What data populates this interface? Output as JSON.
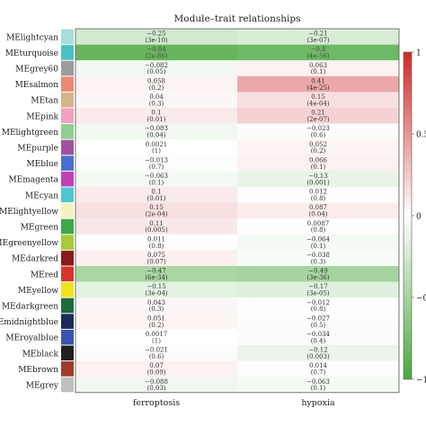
{
  "chart_data": {
    "type": "heatmap",
    "title": "Module–trait relationships",
    "columns": [
      "ferroptosis",
      "hypoxia"
    ],
    "rows": [
      {
        "module": "MElightcyan",
        "swatch": "#a6dcdc",
        "cells": [
          {
            "r": -0.25,
            "p": "(3e-10)"
          },
          {
            "r": -0.21,
            "p": "(3e-07)"
          }
        ]
      },
      {
        "module": "MEturquoise",
        "swatch": "#48c2c2",
        "cells": [
          {
            "r": -0.84,
            "p": "(2e-86)"
          },
          {
            "r": -0.8,
            "p": "(4e-56)"
          }
        ]
      },
      {
        "module": "MEgrey60",
        "swatch": "#9b9b9b",
        "cells": [
          {
            "r": -0.082,
            "p": "(0.05)"
          },
          {
            "r": 0.063,
            "p": "(0.1)"
          }
        ]
      },
      {
        "module": "MEsalmon",
        "swatch": "#e88a74",
        "cells": [
          {
            "r": 0.058,
            "p": "(0.2)"
          },
          {
            "r": 0.41,
            "p": "(4e-25)"
          }
        ]
      },
      {
        "module": "MEtan",
        "swatch": "#d4b48a",
        "cells": [
          {
            "r": 0.04,
            "p": "(0.3)"
          },
          {
            "r": 0.15,
            "p": "(4e-04)"
          }
        ]
      },
      {
        "module": "MEpink",
        "swatch": "#f2a0c0",
        "cells": [
          {
            "r": 0.1,
            "p": "(0.01)"
          },
          {
            "r": 0.21,
            "p": "(2e-07)"
          }
        ]
      },
      {
        "module": "MElightgreen",
        "swatch": "#8fd08f",
        "cells": [
          {
            "r": -0.083,
            "p": "(0.04)"
          },
          {
            "r": -0.023,
            "p": "(0.6)"
          }
        ]
      },
      {
        "module": "MEpurple",
        "swatch": "#a050a0",
        "cells": [
          {
            "r": 0.0021,
            "p": "(1)"
          },
          {
            "r": 0.052,
            "p": "(0.2)"
          }
        ]
      },
      {
        "module": "MEblue",
        "swatch": "#4a6fd0",
        "cells": [
          {
            "r": -0.013,
            "p": "(0.7)"
          },
          {
            "r": 0.066,
            "p": "(0.1)"
          }
        ]
      },
      {
        "module": "MEmagenta",
        "swatch": "#c040b8",
        "cells": [
          {
            "r": -0.063,
            "p": "(0.1)"
          },
          {
            "r": -0.13,
            "p": "(0.001)"
          }
        ]
      },
      {
        "module": "MEcyan",
        "swatch": "#4ec6d0",
        "cells": [
          {
            "r": 0.1,
            "p": "(0.01)"
          },
          {
            "r": 0.012,
            "p": "(0.8)"
          }
        ]
      },
      {
        "module": "MElightyellow",
        "swatch": "#f6f2c0",
        "cells": [
          {
            "r": 0.15,
            "p": "(2e-04)"
          },
          {
            "r": 0.087,
            "p": "(0.04)"
          }
        ]
      },
      {
        "module": "MEgreen",
        "swatch": "#3ea84a",
        "cells": [
          {
            "r": 0.11,
            "p": "(0.005)"
          },
          {
            "r": 0.0087,
            "p": "(0.8)"
          }
        ]
      },
      {
        "module": "MEgreenyellow",
        "swatch": "#a6cc3a",
        "cells": [
          {
            "r": 0.011,
            "p": "(0.8)"
          },
          {
            "r": -0.064,
            "p": "(0.1)"
          }
        ]
      },
      {
        "module": "MEdarkred",
        "swatch": "#8a1a1a",
        "cells": [
          {
            "r": 0.075,
            "p": "(0.07)"
          },
          {
            "r": -0.038,
            "p": "(0.3)"
          }
        ]
      },
      {
        "module": "MEred",
        "swatch": "#d8342a",
        "cells": [
          {
            "r": -0.47,
            "p": "(6e-34)"
          },
          {
            "r": -0.49,
            "p": "(3e-36)"
          }
        ]
      },
      {
        "module": "MEyellow",
        "swatch": "#f2e21a",
        "cells": [
          {
            "r": -0.15,
            "p": "(3e-04)"
          },
          {
            "r": -0.17,
            "p": "(3e-05)"
          }
        ]
      },
      {
        "module": "MEdarkgreen",
        "swatch": "#1e6a3a",
        "cells": [
          {
            "r": 0.043,
            "p": "(0.3)"
          },
          {
            "r": -0.012,
            "p": "(0.8)"
          }
        ]
      },
      {
        "module": "Emidnightblue",
        "swatch": "#1c2a5a",
        "cells": [
          {
            "r": 0.051,
            "p": "(0.2)"
          },
          {
            "r": -0.027,
            "p": "(0.5)"
          }
        ]
      },
      {
        "module": "MEroyalblue",
        "swatch": "#3a52b0",
        "cells": [
          {
            "r": 0.0017,
            "p": "(1)"
          },
          {
            "r": -0.034,
            "p": "(0.4)"
          }
        ]
      },
      {
        "module": "MEblack",
        "swatch": "#202020",
        "cells": [
          {
            "r": -0.021,
            "p": "(0.6)"
          },
          {
            "r": -0.12,
            "p": "(0.003)"
          }
        ]
      },
      {
        "module": "MEbrown",
        "swatch": "#a03a2a",
        "cells": [
          {
            "r": 0.07,
            "p": "(0.09)"
          },
          {
            "r": 0.014,
            "p": "(0.7)"
          }
        ]
      },
      {
        "module": "MEgrey",
        "swatch": "#c0c0c0",
        "cells": [
          {
            "r": -0.088,
            "p": "(0.03)"
          },
          {
            "r": -0.063,
            "p": "(0.1)"
          }
        ]
      }
    ],
    "scale": {
      "range": [
        -1,
        1
      ],
      "ticks": [
        1,
        0.5,
        0,
        -0.5,
        -1
      ],
      "tick_labels": [
        "1",
        "0.5",
        "0",
        "−0.5",
        "−1"
      ],
      "negative_color": "#4aa83e",
      "zero_color": "#ffffff",
      "positive_color": "#d02a2a"
    }
  }
}
